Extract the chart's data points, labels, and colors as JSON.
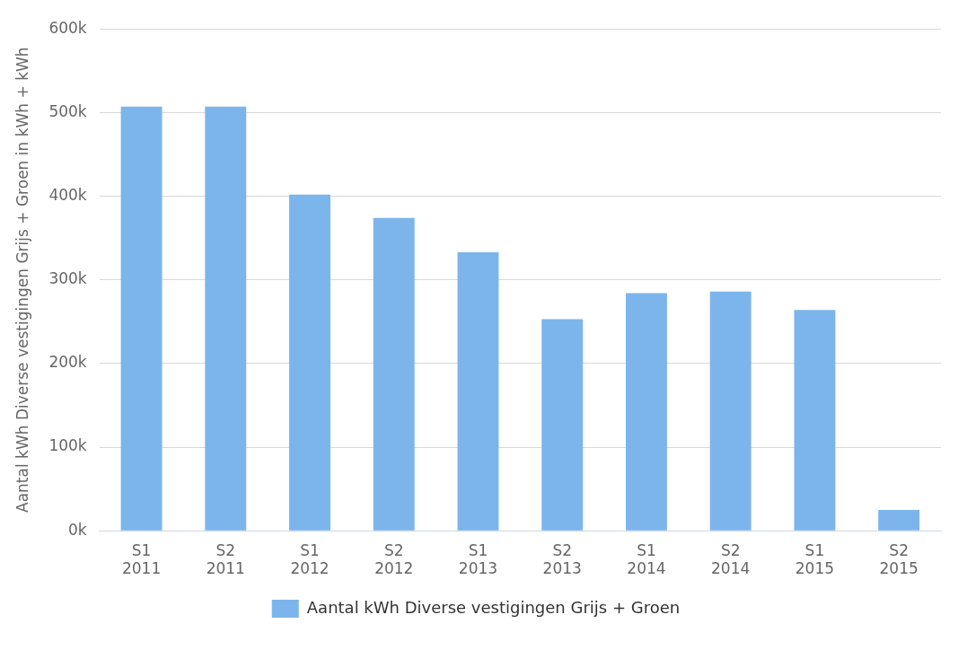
{
  "chart_data": {
    "type": "bar",
    "ylabel": "Aantal kWh Diverse vestigingen Grijs + Groen in kWh + kWh",
    "categories": [
      "S1 2011",
      "S2 2011",
      "S1 2012",
      "S2 2012",
      "S1 2013",
      "S2 2013",
      "S1 2014",
      "S2 2014",
      "S1 2015",
      "S2 2015"
    ],
    "series": [
      {
        "name": "Aantal kWh Diverse vestigingen Grijs + Groen",
        "color": "#7cb5ec",
        "values": [
          507000,
          507000,
          402000,
          374000,
          333000,
          253000,
          284000,
          286000,
          264000,
          25000
        ]
      }
    ],
    "ylim": [
      0,
      600000
    ],
    "yticks": [
      {
        "value": 0,
        "label": "0k"
      },
      {
        "value": 100000,
        "label": "100k"
      },
      {
        "value": 200000,
        "label": "200k"
      },
      {
        "value": 300000,
        "label": "300k"
      },
      {
        "value": 400000,
        "label": "400k"
      },
      {
        "value": 500000,
        "label": "500k"
      },
      {
        "value": 600000,
        "label": "600k"
      }
    ],
    "grid": "y",
    "legend": "bottom"
  }
}
